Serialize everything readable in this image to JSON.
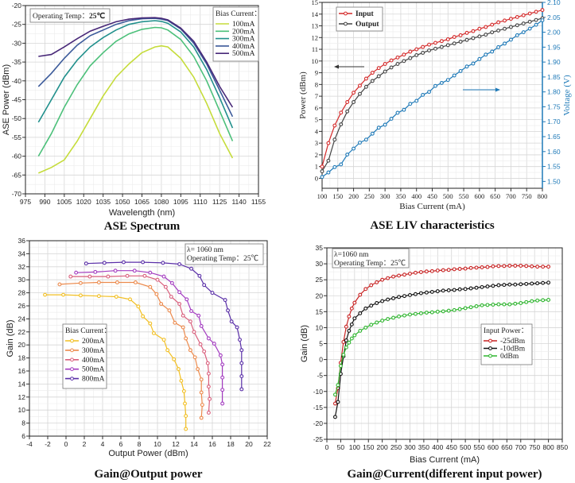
{
  "chart_data": [
    {
      "type": "line",
      "title": "ASE Spectrum",
      "xlabel": "Wavelength (nm)",
      "ylabel": "ASE Power (dBm)",
      "xlim": [
        975,
        1155
      ],
      "ylim": [
        -70,
        -20
      ],
      "grid": true,
      "legend_position": "top-right",
      "xticks": [
        975,
        990,
        1005,
        1020,
        1035,
        1050,
        1065,
        1080,
        1095,
        1110,
        1125,
        1140,
        1155
      ],
      "yticks": [
        -70,
        -65,
        -60,
        -55,
        -50,
        -45,
        -40,
        -35,
        -30,
        -25,
        -20
      ],
      "legend_title": "Bias Current：",
      "annotation": {
        "label": "Operating Temp：",
        "value": "25℃"
      },
      "x": [
        985,
        995,
        1005,
        1015,
        1025,
        1035,
        1045,
        1055,
        1065,
        1075,
        1080,
        1085,
        1095,
        1105,
        1115,
        1125,
        1135
      ],
      "series": [
        {
          "name": "100mA",
          "color": "#c5dc3a",
          "values": [
            -64.5,
            -63,
            -61,
            -56,
            -50,
            -44,
            -39,
            -35.5,
            -32.5,
            -31,
            -30.7,
            -31,
            -34,
            -39,
            -46,
            -54,
            -60.5
          ]
        },
        {
          "name": "200mA",
          "color": "#4cc07a",
          "values": [
            -60,
            -54,
            -47,
            -41,
            -36,
            -32.5,
            -29.5,
            -27.5,
            -26.3,
            -25.8,
            -25.9,
            -26.5,
            -29,
            -33.5,
            -40,
            -48,
            -56
          ]
        },
        {
          "name": "300mA",
          "color": "#21908c",
          "values": [
            -51,
            -45,
            -39,
            -34.5,
            -31,
            -28.5,
            -26.5,
            -25,
            -24.3,
            -24,
            -24.2,
            -24.7,
            -27,
            -31,
            -37,
            -44.5,
            -52.5
          ]
        },
        {
          "name": "400mA",
          "color": "#3b5a9a",
          "values": [
            -41.5,
            -38,
            -34,
            -30.5,
            -28,
            -26.5,
            -25,
            -24,
            -23.5,
            -23.4,
            -23.6,
            -24,
            -26.2,
            -30,
            -35.5,
            -42.5,
            -49.5
          ]
        },
        {
          "name": "500mA",
          "color": "#482878",
          "values": [
            -33.5,
            -33,
            -31,
            -28.8,
            -26.8,
            -25.5,
            -24.3,
            -23.6,
            -23.3,
            -23.2,
            -23.4,
            -23.8,
            -26,
            -29.5,
            -35,
            -41.5,
            -47
          ]
        }
      ]
    },
    {
      "type": "line",
      "title": "ASE LIV characteristics",
      "xlabel": "Bias Current (mA)",
      "ylabel": "Power (dBm)",
      "y2label": "Voltage (V)",
      "xlim": [
        100,
        800
      ],
      "ylim": [
        -0.85,
        15
      ],
      "y2lim": [
        1.477,
        2.1
      ],
      "grid": true,
      "legend_position": "top-left",
      "xticks": [
        100,
        150,
        200,
        250,
        300,
        350,
        400,
        450,
        500,
        550,
        600,
        650,
        700,
        750,
        800
      ],
      "yticks": [
        0,
        1,
        2,
        3,
        4,
        5,
        6,
        7,
        8,
        9,
        10,
        11,
        12,
        13,
        14,
        15
      ],
      "y2ticks": [
        "1.50",
        "1.55",
        "1.60",
        "1.65",
        "1.70",
        "1.75",
        "1.80",
        "1.85",
        "1.90",
        "1.95",
        "2.00",
        "2.05",
        "2.10"
      ],
      "x": [
        100,
        120,
        140,
        160,
        180,
        200,
        220,
        240,
        260,
        280,
        300,
        320,
        340,
        360,
        380,
        400,
        420,
        440,
        460,
        480,
        500,
        520,
        540,
        560,
        580,
        600,
        620,
        640,
        660,
        680,
        700,
        720,
        740,
        760,
        780,
        800
      ],
      "series": [
        {
          "name": "Input",
          "color": "#d42a2a",
          "axis": "left",
          "values": [
            1.0,
            3.0,
            4.5,
            5.6,
            6.5,
            7.3,
            7.9,
            8.5,
            9.0,
            9.4,
            9.75,
            10.05,
            10.3,
            10.55,
            10.8,
            11.0,
            11.2,
            11.4,
            11.55,
            11.7,
            11.85,
            12.05,
            12.2,
            12.4,
            12.55,
            12.75,
            12.9,
            13.1,
            13.3,
            13.45,
            13.6,
            13.75,
            13.9,
            14.05,
            14.2,
            14.35
          ]
        },
        {
          "name": "Output",
          "color": "#444444",
          "axis": "left",
          "values": [
            0.6,
            1.5,
            3.3,
            4.6,
            5.7,
            6.5,
            7.2,
            7.8,
            8.3,
            8.7,
            9.1,
            9.45,
            9.75,
            10.0,
            10.25,
            10.5,
            10.7,
            10.9,
            11.05,
            11.2,
            11.35,
            11.5,
            11.65,
            11.8,
            11.95,
            12.1,
            12.25,
            12.45,
            12.6,
            12.75,
            12.9,
            13.05,
            13.2,
            13.35,
            13.5,
            13.65
          ]
        },
        {
          "color": "#1f7ab8",
          "axis": "right",
          "values": [
            1.515,
            1.53,
            1.548,
            1.557,
            1.59,
            1.61,
            1.63,
            1.64,
            1.66,
            1.68,
            1.69,
            1.71,
            1.73,
            1.74,
            1.76,
            1.77,
            1.79,
            1.8,
            1.82,
            1.83,
            1.84,
            1.855,
            1.87,
            1.885,
            1.895,
            1.91,
            1.925,
            1.935,
            1.95,
            1.962,
            1.975,
            1.99,
            2.0,
            2.012,
            2.025,
            2.04
          ]
        }
      ]
    },
    {
      "type": "line",
      "title": "Gain@Output power",
      "xlabel": "Output Power (dBm)",
      "ylabel": "Gain (dB)",
      "xlim": [
        -4,
        22
      ],
      "ylim": [
        6,
        36
      ],
      "grid": true,
      "legend_position": "center-left",
      "xticks": [
        -4,
        -2,
        0,
        2,
        4,
        6,
        8,
        10,
        12,
        14,
        16,
        18,
        20,
        22
      ],
      "yticks": [
        6,
        8,
        10,
        12,
        14,
        16,
        18,
        20,
        22,
        24,
        26,
        28,
        30,
        32,
        34,
        36
      ],
      "legend_title": "Bias Current：",
      "annotation_lines": [
        "λ= 1060 nm",
        "Operating Temp：25℃"
      ],
      "series": [
        {
          "name": "200mA",
          "color": "#f2bf22",
          "x": [
            -2.3,
            -0.3,
            1.6,
            3.6,
            5.5,
            7,
            7.9,
            8.4,
            9.2,
            9.6,
            10.7,
            11.1,
            11.8,
            12.3,
            12.6,
            12.9,
            13,
            13.1,
            13.1
          ],
          "values": [
            27.7,
            27.7,
            27.6,
            27.5,
            27.4,
            27,
            25.9,
            24.4,
            23.3,
            21.8,
            20.8,
            19.2,
            17.8,
            16.3,
            14.5,
            12.9,
            11,
            9.1,
            7.1
          ]
        },
        {
          "name": "300mA",
          "color": "#ec8a4c",
          "x": [
            -0.7,
            1.6,
            3.6,
            5.6,
            7.6,
            9.2,
            9.9,
            10.4,
            11.3,
            11.9,
            12.8,
            13.1,
            13.6,
            14.1,
            14.4,
            14.8,
            14.8,
            14.9,
            14.8
          ],
          "values": [
            29.3,
            29.5,
            29.6,
            29.6,
            29.6,
            28.9,
            27.8,
            26.3,
            25.3,
            23.4,
            22.7,
            21,
            19.2,
            18.1,
            16.3,
            14.7,
            12.7,
            10.8,
            8.8
          ]
        },
        {
          "name": "400mA",
          "color": "#d95f7c",
          "x": [
            0.5,
            2.6,
            4.6,
            6.7,
            8.6,
            10,
            10.9,
            11.5,
            12.4,
            12.8,
            13.6,
            14,
            14.7,
            15.1,
            15.5,
            15.6,
            15.6,
            15.7,
            15.6
          ],
          "values": [
            30.5,
            30.5,
            30.5,
            30.6,
            30.6,
            30,
            28.9,
            27.4,
            26.3,
            24.5,
            23.6,
            22,
            20.1,
            19,
            17.2,
            15.6,
            13.6,
            11.7,
            9.6
          ]
        },
        {
          "name": "500mA",
          "color": "#a33cc0",
          "x": [
            1.1,
            3.2,
            5.4,
            7.5,
            9.2,
            10.7,
            11.6,
            12.4,
            13.2,
            13.7,
            14.5,
            14.8,
            15.6,
            16.2,
            16.9,
            17.1,
            17.1,
            17.1,
            17.1
          ],
          "values": [
            31.1,
            31.2,
            31.4,
            31.4,
            31.1,
            30.5,
            29.5,
            28.1,
            27,
            25.2,
            24.5,
            22.9,
            21,
            20.2,
            18.4,
            17,
            15,
            13.1,
            11
          ]
        },
        {
          "name": "800mA",
          "color": "#5a2fa8",
          "x": [
            2.2,
            4.2,
            6.3,
            8.4,
            10.6,
            12.4,
            13.7,
            14.6,
            15.1,
            16,
            17.4,
            17.7,
            18.1,
            18.7,
            19,
            19.2,
            19.2,
            19.2,
            19.2
          ],
          "values": [
            32.5,
            32.6,
            32.7,
            32.7,
            32.6,
            32.4,
            31.7,
            30.6,
            29.2,
            28,
            26.9,
            25.3,
            23.6,
            22.7,
            20.8,
            19.2,
            17.2,
            15.2,
            13.2
          ]
        }
      ]
    },
    {
      "type": "line",
      "title": "Gain@Current(different input power)",
      "xlabel": "Bias Current (mA)",
      "ylabel": "Gain (dB)",
      "xlim": [
        0,
        850
      ],
      "ylim": [
        -25,
        35
      ],
      "grid": true,
      "legend_position": "center-right",
      "xticks": [
        0,
        50,
        100,
        150,
        200,
        250,
        300,
        350,
        400,
        450,
        500,
        550,
        600,
        650,
        700,
        750,
        800,
        850
      ],
      "yticks": [
        -25,
        -20,
        -15,
        -10,
        -5,
        0,
        5,
        10,
        15,
        20,
        25,
        30,
        35
      ],
      "legend_title": "Input Power：",
      "annotation_lines": [
        "λ=1060 nm",
        "Operating Temp：25℃"
      ],
      "x": [
        30,
        40,
        50,
        60,
        70,
        80,
        90,
        100,
        120,
        140,
        160,
        180,
        200,
        220,
        240,
        260,
        280,
        300,
        320,
        340,
        360,
        380,
        400,
        420,
        440,
        460,
        480,
        500,
        520,
        540,
        560,
        580,
        600,
        620,
        640,
        660,
        680,
        700,
        720,
        740,
        760,
        780,
        800
      ],
      "series": [
        {
          "name": "-25dBm",
          "color": "#c82424",
          "values": [
            -13.8,
            -9,
            -1,
            5.5,
            10.3,
            13.5,
            16,
            17.8,
            20.3,
            22.1,
            23.3,
            24.2,
            25,
            25.5,
            26,
            26.3,
            26.6,
            26.9,
            27.2,
            27.4,
            27.6,
            27.7,
            27.9,
            28,
            28.1,
            28.3,
            28.4,
            28.5,
            28.7,
            28.8,
            28.9,
            29,
            29.2,
            29.3,
            29.3,
            29.4,
            29.4,
            29.4,
            29.3,
            29.2,
            29.1,
            29.1,
            29.1
          ]
        },
        {
          "name": "-10dBm",
          "color": "#111111",
          "values": [
            -18,
            -13.3,
            -4.5,
            1,
            6,
            9,
            11,
            12.9,
            14.5,
            16,
            16.9,
            17.7,
            18.3,
            18.8,
            19.2,
            19.6,
            19.9,
            20.2,
            20.5,
            20.8,
            21,
            21.2,
            21.4,
            21.6,
            21.7,
            21.8,
            22,
            22.1,
            22.3,
            22.5,
            22.7,
            22.9,
            23.1,
            23.3,
            23.4,
            23.5,
            23.5,
            23.6,
            23.7,
            23.8,
            23.9,
            24,
            24.1
          ]
        },
        {
          "name": "0dBm",
          "color": "#2fb52f",
          "values": [
            -11,
            -8,
            -2,
            1.5,
            3.8,
            5.3,
            6.6,
            7.6,
            9,
            10,
            10.9,
            11.6,
            12.2,
            12.7,
            13.1,
            13.5,
            13.8,
            14.1,
            14.3,
            14.5,
            14.7,
            14.8,
            15,
            15.1,
            15.3,
            15.5,
            15.8,
            16.1,
            16.4,
            16.7,
            17,
            17.1,
            17.2,
            17.3,
            17.3,
            17.3,
            17.5,
            17.7,
            18,
            18.3,
            18.5,
            18.6,
            18.7
          ]
        }
      ]
    }
  ]
}
